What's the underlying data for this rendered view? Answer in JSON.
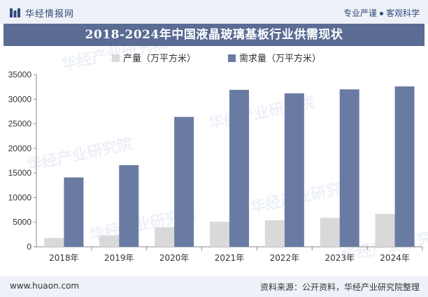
{
  "header": {
    "brand": "华经情报网",
    "tagline_left": "专业严谨",
    "tagline_right": "客观科学"
  },
  "watermark": "华经产业研究院",
  "footer": {
    "url": "www.huaon.com",
    "source": "资料来源：公开资料，华经产业研究院整理"
  },
  "colors": {
    "production": "#d9d9d9",
    "demand": "#6a7ba3",
    "title_bg": "#5a6b94",
    "brand": "#2f4a7a"
  },
  "chart_data": {
    "type": "bar",
    "title": "2018-2024年中国液晶玻璃基板行业供需现状",
    "categories": [
      "2018年",
      "2019年",
      "2020年",
      "2021年",
      "2022年",
      "2023年",
      "2024年"
    ],
    "series": [
      {
        "name": "产量（万平方米）",
        "values": [
          1800,
          2300,
          4000,
          5100,
          5400,
          5900,
          6700
        ]
      },
      {
        "name": "需求量（万平方米）",
        "values": [
          14100,
          16600,
          26400,
          31900,
          31200,
          32000,
          32600
        ]
      }
    ],
    "ylim": [
      0,
      35000
    ],
    "yticks": [
      0,
      5000,
      10000,
      15000,
      20000,
      25000,
      30000,
      35000
    ],
    "grid": false,
    "legend_position": "top-left"
  }
}
